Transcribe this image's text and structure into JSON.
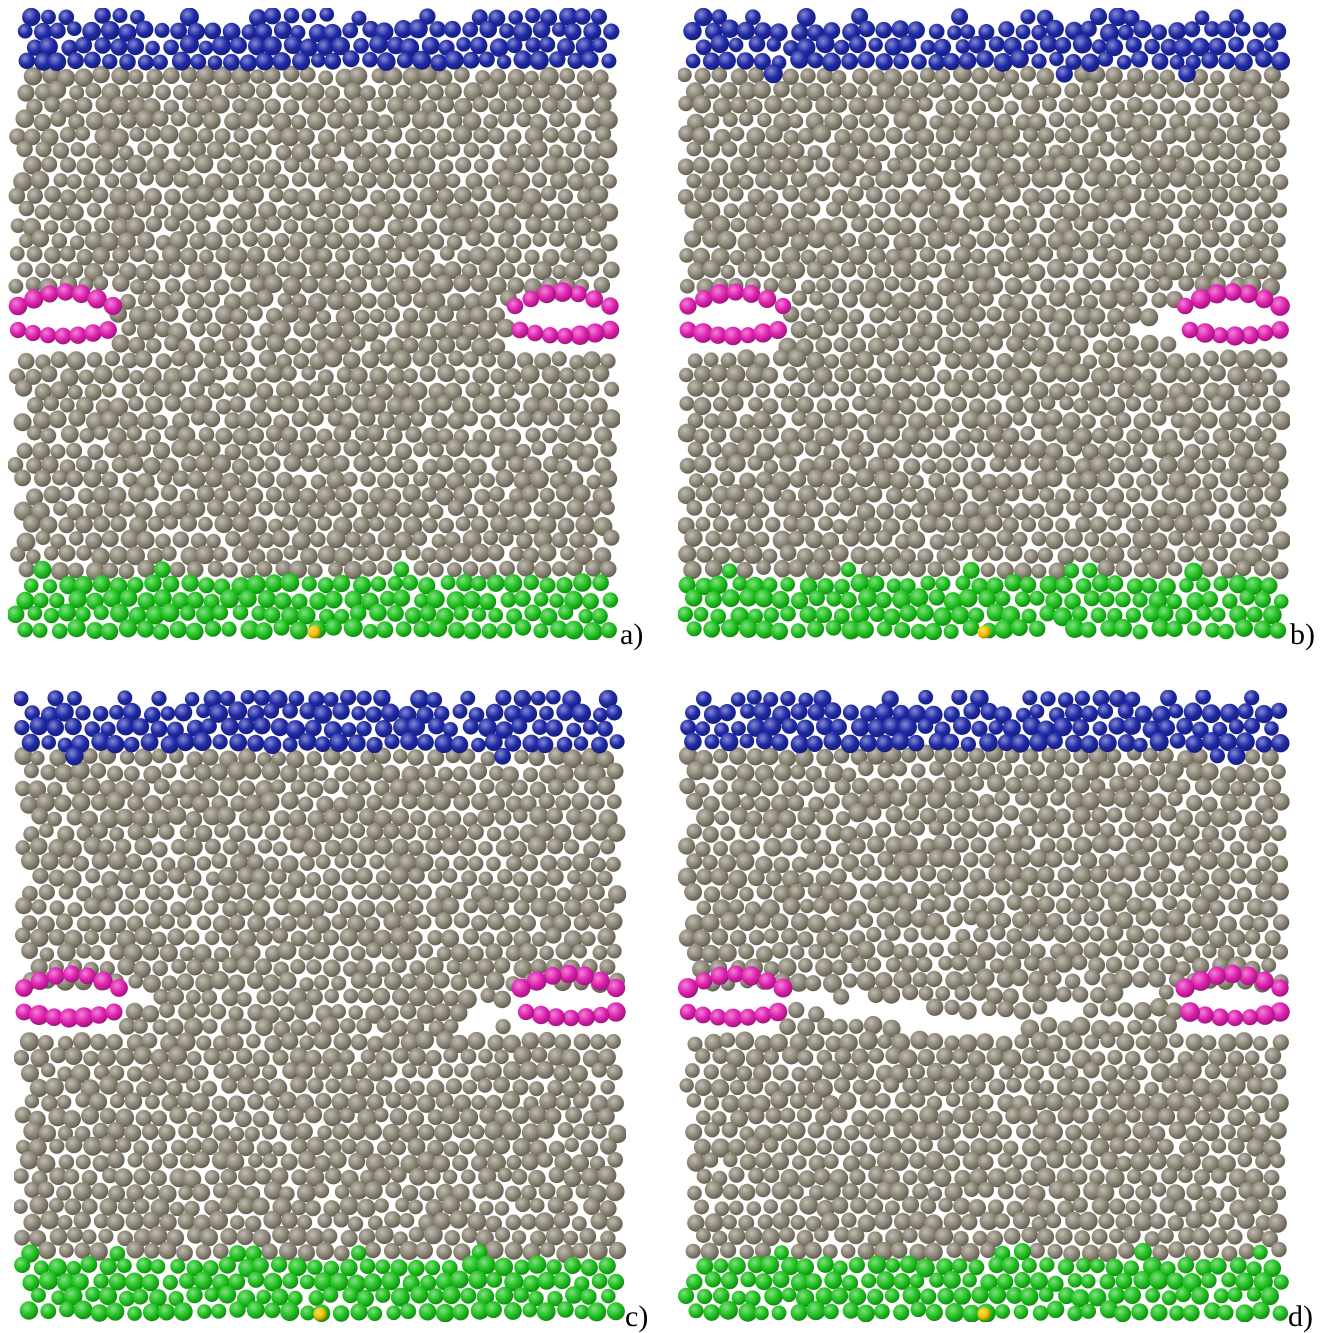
{
  "figure": {
    "panels": [
      {
        "id": "a",
        "label": "a)",
        "crack": "none",
        "defect_opening": "none"
      },
      {
        "id": "b",
        "label": "b)",
        "crack": "initiation",
        "defect_opening": "right"
      },
      {
        "id": "c",
        "label": "c)",
        "crack": "initiation",
        "defect_opening": "both"
      },
      {
        "id": "d",
        "label": "d)",
        "crack": "propagated",
        "defect_opening": "through"
      }
    ],
    "particle_groups": [
      {
        "name": "top-boundary-particles",
        "color": "#1f2aa8",
        "position": "top"
      },
      {
        "name": "bulk-particles",
        "color": "#8c8676",
        "position": "middle"
      },
      {
        "name": "notch-particles",
        "color": "#e020b0",
        "position": "left-and-right-edges"
      },
      {
        "name": "bottom-boundary-particles",
        "color": "#1fc21f",
        "position": "bottom"
      },
      {
        "name": "marker-particle",
        "color": "#f2c400",
        "position": "bottom-center"
      }
    ]
  }
}
